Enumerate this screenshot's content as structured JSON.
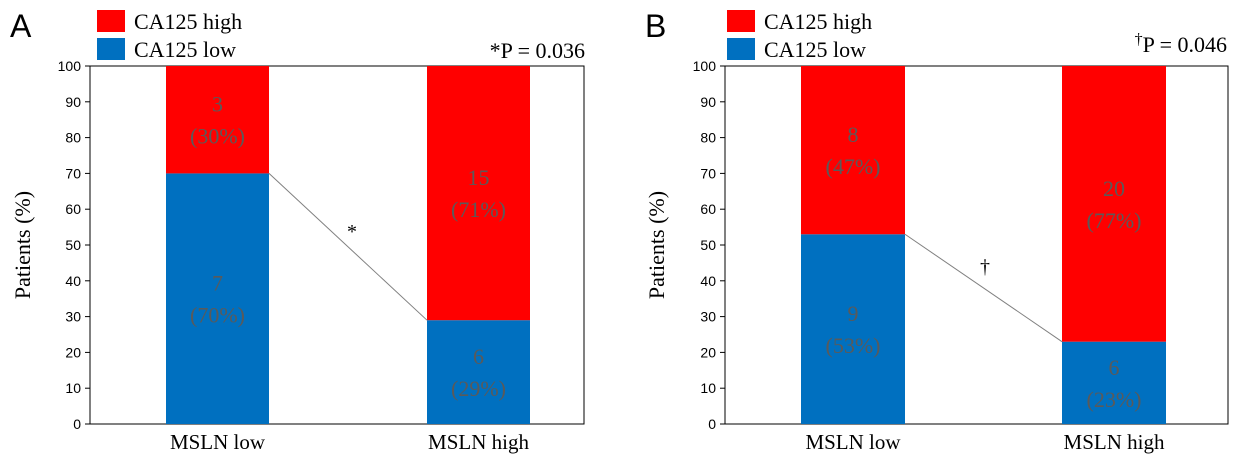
{
  "colors": {
    "high": "#ff0000",
    "low": "#0070c0",
    "label_text": "#5a5a5a",
    "connector": "#808080"
  },
  "chart_data": [
    {
      "panel_label": "A",
      "type": "bar",
      "stacked": true,
      "percent": true,
      "categories": [
        "MSLN low",
        "MSLN high"
      ],
      "series": [
        {
          "name": "CA125 high",
          "color": "#ff0000",
          "values": [
            30,
            71
          ],
          "counts": [
            3,
            15
          ],
          "labels": [
            "(30%)",
            "(71%)"
          ]
        },
        {
          "name": "CA125 low",
          "color": "#0070c0",
          "values": [
            70,
            29
          ],
          "counts": [
            7,
            6
          ],
          "labels": [
            "(70%)",
            "(29%)"
          ]
        }
      ],
      "ylabel": "Patients (%)",
      "ylim": [
        0,
        100
      ],
      "yticks": [
        0,
        10,
        20,
        30,
        40,
        50,
        60,
        70,
        80,
        90,
        100
      ],
      "pvalue_symbol": "*",
      "pvalue_text": "P = 0.036",
      "connector_mark": "*",
      "legend_position": "top-left"
    },
    {
      "panel_label": "B",
      "type": "bar",
      "stacked": true,
      "percent": true,
      "categories": [
        "MSLN low",
        "MSLN high"
      ],
      "series": [
        {
          "name": "CA125 high",
          "color": "#ff0000",
          "values": [
            47,
            77
          ],
          "counts": [
            8,
            20
          ],
          "labels": [
            "(47%)",
            "(77%)"
          ]
        },
        {
          "name": "CA125 low",
          "color": "#0070c0",
          "values": [
            53,
            23
          ],
          "counts": [
            9,
            6
          ],
          "labels": [
            "(53%)",
            "(23%)"
          ]
        }
      ],
      "ylabel": "Patients (%)",
      "ylim": [
        0,
        100
      ],
      "yticks": [
        0,
        10,
        20,
        30,
        40,
        50,
        60,
        70,
        80,
        90,
        100
      ],
      "pvalue_symbol": "†",
      "pvalue_text": "P = 0.046",
      "connector_mark": "†",
      "legend_position": "top-left"
    }
  ]
}
